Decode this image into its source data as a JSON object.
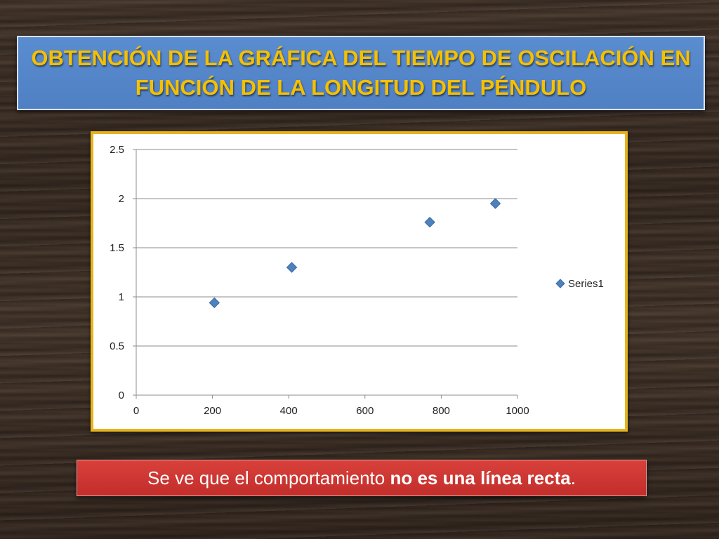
{
  "slide": {
    "title": "OBTENCIÓN DE LA GRÁFICA DEL TIEMPO DE OSCILACIÓN EN FUNCIÓN DE LA LONGITUD DEL PÉNDULO",
    "note_prefix": "Se ve que el comportamiento ",
    "note_bold": "no es una línea recta",
    "note_suffix": "."
  },
  "colors": {
    "title_text": "#f5c000",
    "title_bg": "#4f81bd",
    "frame_border": "#e6b41e",
    "marker": "#4f81bd",
    "note_bg": "#c9302c"
  },
  "chart_data": {
    "type": "scatter",
    "title": "",
    "xlabel": "",
    "ylabel": "",
    "xlim": [
      0,
      1000
    ],
    "ylim": [
      0,
      2.5
    ],
    "x_ticks": [
      "0",
      "200",
      "400",
      "600",
      "800",
      "1000"
    ],
    "y_ticks": [
      "0",
      "0.5",
      "1",
      "1.5",
      "2",
      "2.5"
    ],
    "grid": "horizontal",
    "legend_position": "right",
    "marker": "diamond",
    "series": [
      {
        "name": "Series1",
        "x": [
          205,
          408,
          770,
          942
        ],
        "y": [
          0.94,
          1.3,
          1.76,
          1.95
        ]
      }
    ]
  }
}
